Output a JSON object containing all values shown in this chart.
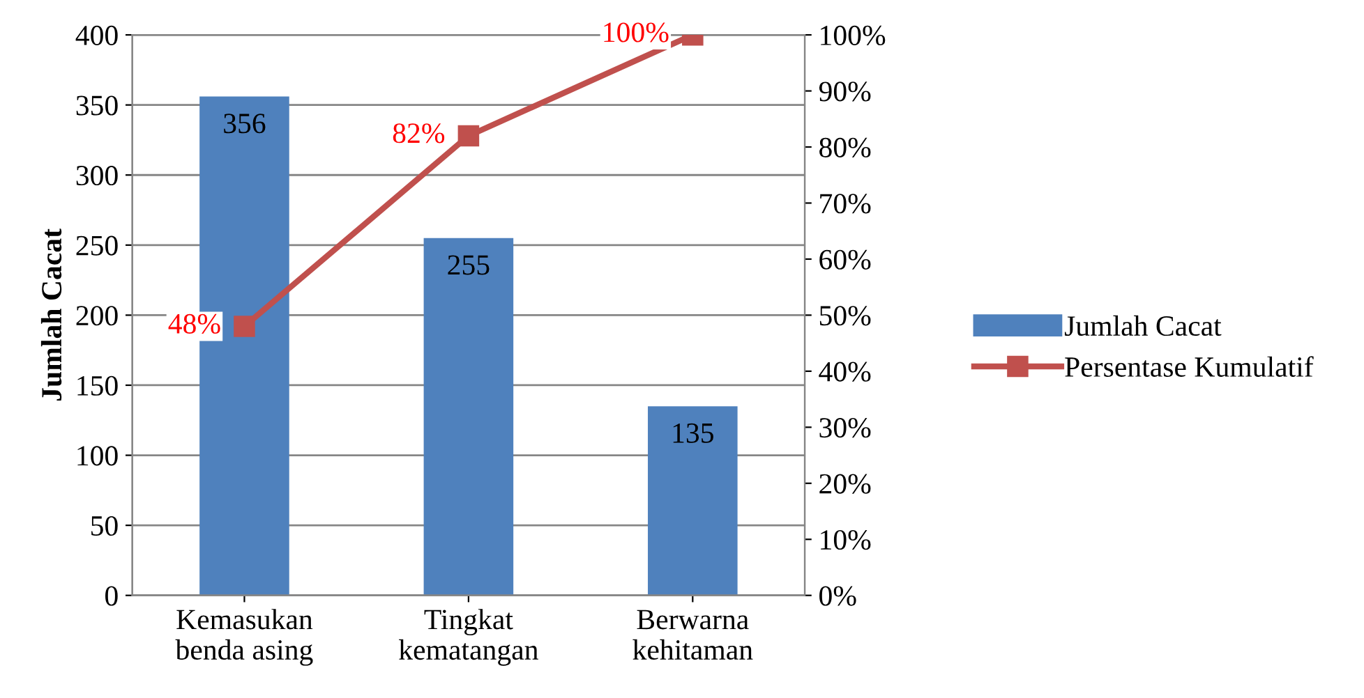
{
  "chart_data": {
    "type": "bar",
    "ylabel": "Jumlah Cacat",
    "categories": [
      "Kemasukan\nbenda asing",
      "Tingkat\nkematangan",
      "Berwarna\nkehitaman"
    ],
    "series": [
      {
        "name": "Jumlah Cacat",
        "color": "#4f81bd",
        "values": [
          356,
          255,
          135
        ],
        "value_labels": [
          "356",
          "255",
          "135"
        ]
      },
      {
        "name": "Persentase Kumulatif",
        "type": "line",
        "axis": "y2",
        "color": "#c0504d",
        "marker": "square",
        "line_style": "solid",
        "values": [
          48,
          82,
          100
        ],
        "value_labels": [
          "48%",
          "82%",
          "100%"
        ]
      }
    ],
    "ylim": [
      0,
      400
    ],
    "yticks": [
      0,
      50,
      100,
      150,
      200,
      250,
      300,
      350,
      400
    ],
    "y2lim": [
      0,
      100
    ],
    "y2ticks": [
      {
        "value": 0,
        "label": "0%"
      },
      {
        "value": 10,
        "label": "10%"
      },
      {
        "value": 20,
        "label": "20%"
      },
      {
        "value": 30,
        "label": "30%"
      },
      {
        "value": 40,
        "label": "40%"
      },
      {
        "value": 50,
        "label": "50%"
      },
      {
        "value": 60,
        "label": "60%"
      },
      {
        "value": 70,
        "label": "70%"
      },
      {
        "value": 80,
        "label": "80%"
      },
      {
        "value": 90,
        "label": "90%"
      },
      {
        "value": 100,
        "label": "100%"
      }
    ],
    "grid": "y",
    "legend": "right"
  }
}
